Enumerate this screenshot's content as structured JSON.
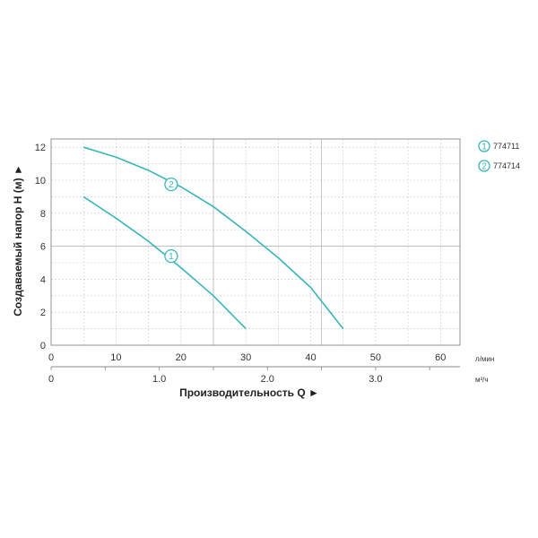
{
  "chart_data": {
    "type": "line",
    "xlabel": "Производительность Q ►",
    "ylabel": "Создаваемый напор H (м) ►",
    "x_unit_primary": "л/мин",
    "x_unit_secondary": "м³/ч",
    "xlim": [
      0,
      63
    ],
    "ylim": [
      0,
      12.5
    ],
    "x_ticks": [
      "0",
      "10",
      "20",
      "30",
      "40",
      "50",
      "60"
    ],
    "x_ticks_m3h": [
      "0",
      "1.0",
      "2.0",
      "3.0"
    ],
    "y_ticks": [
      "0",
      "2",
      "4",
      "6",
      "8",
      "10",
      "12"
    ],
    "grid": true,
    "legend_position": "right",
    "series": [
      {
        "name": "774711",
        "marker": "1",
        "color": "#3ab5b8",
        "x": [
          5,
          10,
          15,
          20,
          25,
          30
        ],
        "y": [
          9.0,
          7.7,
          6.3,
          4.7,
          3.0,
          1.0
        ]
      },
      {
        "name": "774714",
        "marker": "2",
        "color": "#3ab5b8",
        "x": [
          5,
          10,
          15,
          20,
          25,
          30,
          35,
          40,
          45
        ],
        "y": [
          12.0,
          11.4,
          10.6,
          9.6,
          8.4,
          6.9,
          5.3,
          3.5,
          1.0
        ]
      }
    ],
    "curve_markers": [
      {
        "label": "2",
        "x": 18.5,
        "y": 9.75
      },
      {
        "label": "1",
        "x": 18.5,
        "y": 5.4
      }
    ]
  }
}
